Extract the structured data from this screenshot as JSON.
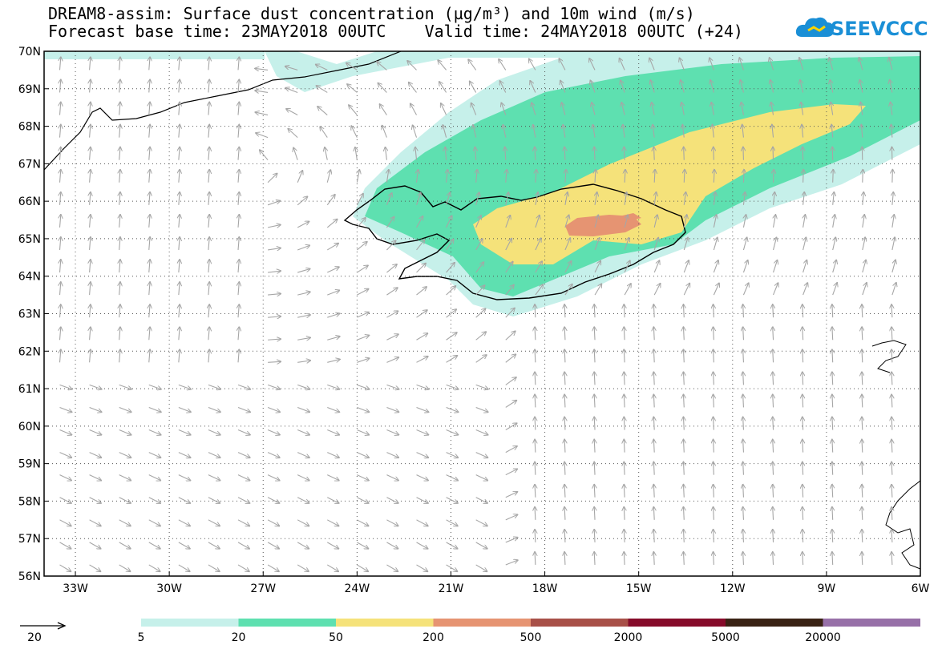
{
  "title_line1": "DREAM8-assim: Surface dust concentration (µg/m³) and 10m wind (m/s)",
  "title_line2": "Forecast base time: 23MAY2018 00UTC    Valid time: 24MAY2018 00UTC (+24)",
  "logo_text": "SEEVCCC",
  "map": {
    "lat_labels": [
      "70N",
      "69N",
      "68N",
      "67N",
      "66N",
      "65N",
      "64N",
      "63N",
      "62N",
      "61N",
      "60N",
      "59N",
      "58N",
      "57N",
      "56N"
    ],
    "lon_labels": [
      "33W",
      "30W",
      "27W",
      "24W",
      "21W",
      "18W",
      "15W",
      "12W",
      "9W",
      "6W"
    ],
    "lat_range": [
      56,
      70
    ],
    "lon_range": [
      -34,
      -6
    ],
    "colors": {
      "land_outline": "#000000",
      "wind_arrow": "#a6a6a6",
      "grid": "#555555"
    },
    "dust_levels": [
      "5-20",
      "20-50",
      "50-200",
      "200-500"
    ]
  },
  "legend": {
    "wind_reference": "20",
    "thresholds": [
      "5",
      "20",
      "50",
      "200",
      "500",
      "2000",
      "5000",
      "20000"
    ],
    "colors": [
      "#c6f0ea",
      "#5ee0b0",
      "#f5e27a",
      "#e69472",
      "#a85048",
      "#860b2a",
      "#3a2214",
      "#9770a8"
    ]
  }
}
